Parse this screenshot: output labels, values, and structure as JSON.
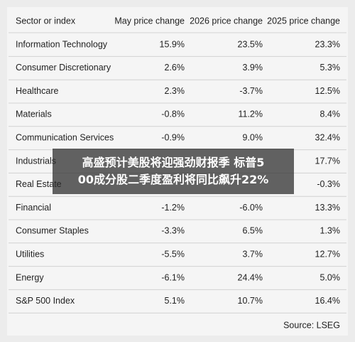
{
  "table": {
    "header": [
      "Sector or index",
      "May price change",
      "2026 price change",
      "2025 price change"
    ],
    "rows": [
      [
        "Information Technology",
        "15.9%",
        "23.5%",
        "23.3%"
      ],
      [
        "Consumer Discretionary",
        "2.6%",
        "3.9%",
        "5.3%"
      ],
      [
        "Healthcare",
        "2.3%",
        "-3.7%",
        "12.5%"
      ],
      [
        "Materials",
        "-0.8%",
        "11.2%",
        "8.4%"
      ],
      [
        "Communication Services",
        "-0.9%",
        "9.0%",
        "32.4%"
      ],
      [
        "Industrials",
        null,
        null,
        "17.7%"
      ],
      [
        "Real Estate",
        null,
        null,
        "-0.3%"
      ],
      [
        "Financial",
        "-1.2%",
        "-6.0%",
        "13.3%"
      ],
      [
        "Consumer Staples",
        "-3.3%",
        "6.5%",
        "1.3%"
      ],
      [
        "Utilities",
        "-5.5%",
        "3.7%",
        "12.7%"
      ],
      [
        "Energy",
        "-6.1%",
        "24.4%",
        "5.0%"
      ],
      [
        "S&P 500 Index",
        "5.1%",
        "10.7%",
        "16.4%"
      ]
    ],
    "source": "Source: LSEG"
  },
  "overlay": {
    "lines": [
      "高盛预计美股将迎强劲财报季 标普5",
      "00成分股二季度盈利将同比飙升22%"
    ]
  }
}
